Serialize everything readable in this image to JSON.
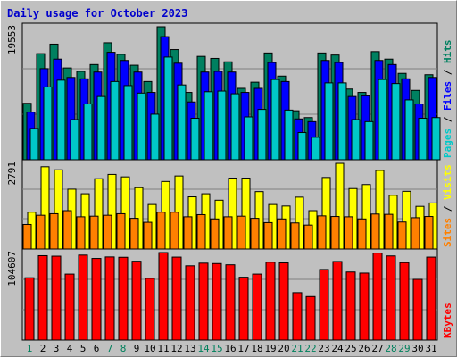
{
  "chart_data": {
    "type": "bar",
    "title": "Daily usage for October 2023",
    "categories": [
      "1",
      "2",
      "3",
      "4",
      "5",
      "6",
      "7",
      "8",
      "9",
      "10",
      "11",
      "12",
      "13",
      "14",
      "15",
      "16",
      "17",
      "18",
      "19",
      "20",
      "21",
      "22",
      "23",
      "24",
      "25",
      "26",
      "27",
      "28",
      "29",
      "30",
      "31"
    ],
    "weekend_days": [
      "1",
      "7",
      "8",
      "14",
      "15",
      "21",
      "22",
      "28",
      "29"
    ],
    "panels": [
      {
        "name": "pages-files-hits",
        "ymax_label": "19553",
        "ymax": 19553,
        "legend": [
          {
            "text": "Pages",
            "color": "#00c8c8"
          },
          {
            "text": " / ",
            "color": "#000000"
          },
          {
            "text": "Files",
            "color": "#0000ff"
          },
          {
            "text": " / ",
            "color": "#000000"
          },
          {
            "text": "Hits",
            "color": "#008060"
          }
        ],
        "series": [
          {
            "name": "Hits",
            "color": "#008060",
            "values": [
              8300,
              15600,
              17000,
              13500,
              13000,
              14000,
              17200,
              15500,
              13900,
              11500,
              19553,
              16200,
              9900,
              15200,
              14900,
              14400,
              10500,
              11400,
              15700,
              12300,
              7200,
              6200,
              15700,
              15400,
              10400,
              9900,
              15900,
              14800,
              12700,
              10200,
              12500
            ]
          },
          {
            "name": "Files",
            "color": "#0000ff",
            "values": [
              7000,
              13400,
              14800,
              12100,
              11900,
              12900,
              15800,
              14600,
              12900,
              9900,
              18100,
              14200,
              8500,
              12900,
              13000,
              12900,
              9900,
              10500,
              14300,
              11500,
              6000,
              5600,
              14600,
              14300,
              9300,
              9400,
              14600,
              14000,
              11900,
              8200,
              12100
            ]
          },
          {
            "name": "Pages",
            "color": "#00c8c8",
            "values": [
              4600,
              10700,
              11700,
              5900,
              8200,
              9300,
              11500,
              10900,
              9800,
              6700,
              15100,
              11000,
              6100,
              10000,
              10100,
              9700,
              6300,
              7400,
              11800,
              7300,
              4000,
              3300,
              11300,
              11300,
              5900,
              5600,
              11800,
              11200,
              8800,
              6100,
              6200
            ]
          }
        ]
      },
      {
        "name": "sites-visits",
        "ymax_label": "2791",
        "ymax": 2791,
        "legend": [
          {
            "text": "Sites",
            "color": "#ff8000"
          },
          {
            "text": " / ",
            "color": "#000000"
          },
          {
            "text": "Visits",
            "color": "#ffff00"
          }
        ],
        "series": [
          {
            "name": "Visits",
            "color": "#ffff00",
            "values": [
              1200,
              2680,
              2580,
              1950,
              1800,
              2290,
              2430,
              2350,
              2000,
              1450,
              2200,
              2380,
              1700,
              1800,
              1590,
              2310,
              2310,
              1870,
              1450,
              1400,
              1690,
              1250,
              2330,
              2790,
              1970,
              2100,
              2560,
              1750,
              1880,
              1390,
              1500
            ]
          },
          {
            "name": "Sites",
            "color": "#ff8000",
            "values": [
              800,
              1100,
              1150,
              1250,
              1050,
              1070,
              1100,
              1150,
              1000,
              870,
              1200,
              1200,
              1050,
              1120,
              980,
              1050,
              1070,
              1000,
              860,
              980,
              850,
              780,
              1080,
              1060,
              1050,
              980,
              1140,
              1130,
              880,
              1020,
              1060
            ]
          }
        ]
      },
      {
        "name": "kbytes",
        "ymax_label": "104607",
        "ymax": 104607,
        "legend": [
          {
            "text": "KBytes",
            "color": "#ff0000"
          }
        ],
        "series": [
          {
            "name": "KBytes",
            "color": "#ff0000",
            "values": [
              74500,
              100900,
              100300,
              78900,
              101600,
              97600,
              99400,
              99000,
              94300,
              73800,
              104607,
              99200,
              88800,
              92000,
              91500,
              90000,
              75100,
              78900,
              93100,
              92300,
              56700,
              52000,
              84400,
              94000,
              81400,
              80100,
              104000,
              100600,
              92600,
              72600,
              99200
            ]
          }
        ]
      }
    ]
  }
}
